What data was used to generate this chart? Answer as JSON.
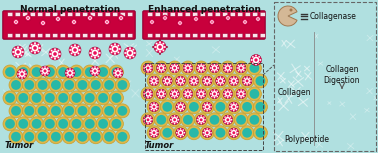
{
  "bg_color": "#b0e0e0",
  "title_left": "Normal penetration",
  "title_right": "Enhanced penetration",
  "tumor_label": "Tumor",
  "legend_collagenase": "Collagenase",
  "legend_collagen": "Collagen",
  "legend_collagen_digestion": "Collagen\nDigestion",
  "legend_polypeptide": "Polypeptide",
  "vessel_color": "#c8003c",
  "vessel_border": "#900030",
  "cell_outer_color": "#ddb84a",
  "cell_outer_border": "#c8a030",
  "cell_inner_color": "#28b8a8",
  "np_pink": "#e8105a",
  "np_white": "#ffffff",
  "np_border": "#a00030",
  "collagen_color": "#c0dede",
  "text_color": "#111111",
  "collagenase_fill": "#d4b896",
  "collagenase_border": "#a07850",
  "legend_border": "#666666",
  "divider_color": "#888888",
  "arrow_color": "#555555",
  "vessel_cutout": "#ffffff",
  "dashed_box_color": "#444444"
}
